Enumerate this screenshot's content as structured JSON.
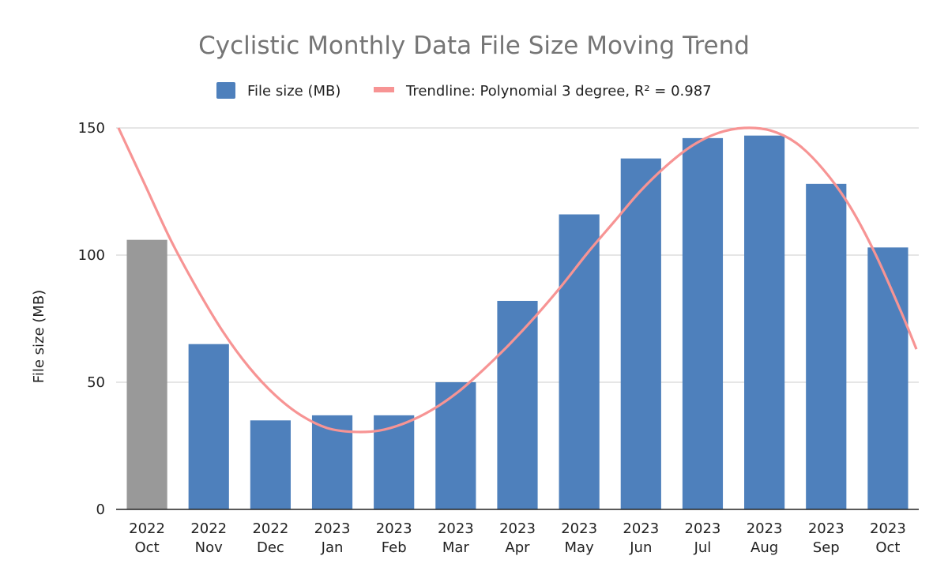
{
  "chart_data": {
    "type": "bar",
    "title": "Cyclistic Monthly Data File Size Moving Trend",
    "xlabel": "",
    "ylabel": "File size (MB)",
    "ylim": [
      0,
      150
    ],
    "yticks": [
      "0",
      "50",
      "100",
      "150"
    ],
    "grid": true,
    "legend_position": "top",
    "categories": [
      [
        "2022",
        "Oct"
      ],
      [
        "2022",
        "Nov"
      ],
      [
        "2022",
        "Dec"
      ],
      [
        "2023",
        "Jan"
      ],
      [
        "2023",
        "Feb"
      ],
      [
        "2023",
        "Mar"
      ],
      [
        "2023",
        "Apr"
      ],
      [
        "2023",
        "May"
      ],
      [
        "2023",
        "Jun"
      ],
      [
        "2023",
        "Jul"
      ],
      [
        "2023",
        "Aug"
      ],
      [
        "2023",
        "Sep"
      ],
      [
        "2023",
        "Oct"
      ]
    ],
    "series": [
      {
        "name": "File size (MB)",
        "values": [
          106,
          65,
          35,
          37,
          37,
          50,
          82,
          116,
          138,
          146,
          147,
          128,
          103
        ],
        "color": "#4e80bc",
        "highlight_color": "#999999",
        "highlight_index": 0
      }
    ],
    "trendline": {
      "name": "Trendline: Polynomial 3 degree, R² = 0.987",
      "type": "polynomial",
      "degree": 3,
      "r_squared": 0.987,
      "color": "#f79494",
      "points": [
        [
          0,
          150
        ],
        [
          0.5,
          128
        ],
        [
          1,
          106
        ],
        [
          1.5,
          87
        ],
        [
          2,
          70
        ],
        [
          2.5,
          56
        ],
        [
          3,
          45
        ],
        [
          3.5,
          37
        ],
        [
          4,
          32
        ],
        [
          4.5,
          30.5
        ],
        [
          5,
          31
        ],
        [
          5.5,
          34
        ],
        [
          6,
          39
        ],
        [
          6.5,
          46
        ],
        [
          7,
          55
        ],
        [
          7.5,
          65
        ],
        [
          8,
          76
        ],
        [
          8.5,
          88
        ],
        [
          9,
          101
        ],
        [
          9.5,
          113
        ],
        [
          10,
          125
        ],
        [
          10.5,
          135
        ],
        [
          11,
          143
        ],
        [
          11.5,
          148
        ],
        [
          12,
          150
        ],
        [
          12.5,
          149
        ],
        [
          13,
          144
        ],
        [
          13.5,
          134
        ],
        [
          14,
          120
        ],
        [
          14.5,
          101
        ],
        [
          15,
          78
        ],
        [
          15.3,
          63
        ]
      ]
    }
  }
}
